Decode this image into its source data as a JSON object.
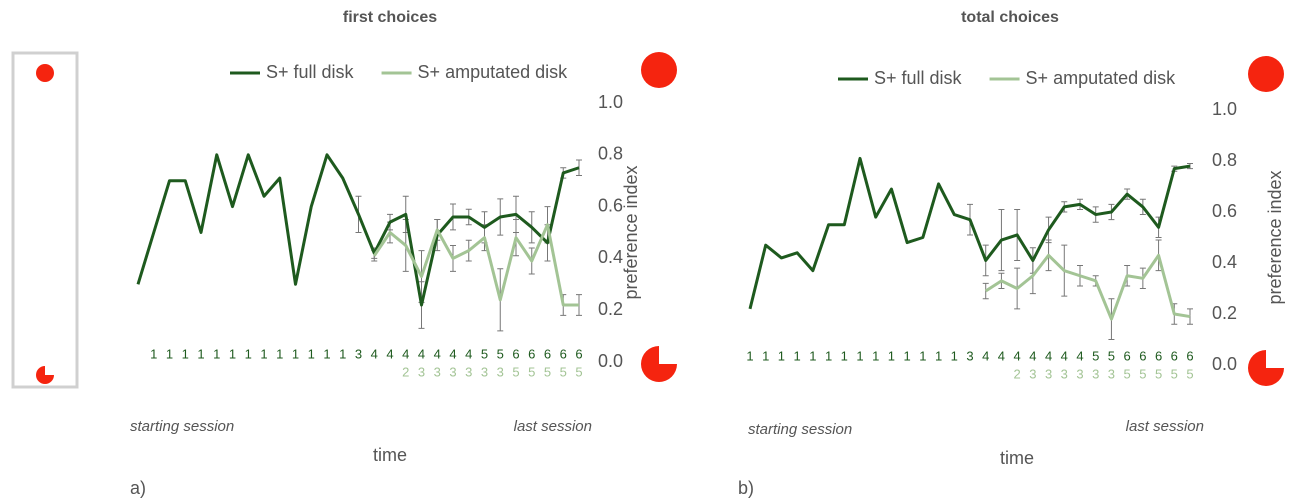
{
  "chart_data": [
    {
      "type": "line",
      "title": "first choices",
      "y_label": "preference index",
      "x_label": "time",
      "annotations": [
        "starting session",
        "last session",
        "a)"
      ],
      "categories": [
        null,
        "1",
        "1",
        "1",
        "1",
        "1",
        "1",
        "1",
        "1",
        "1",
        "1",
        "1",
        "1",
        "1",
        "3",
        "4",
        "4",
        "4",
        "4",
        "4",
        "4",
        "4",
        "5",
        "5",
        "6",
        "6",
        "6",
        "6",
        "6"
      ],
      "categories2": [
        null,
        null,
        null,
        null,
        null,
        null,
        null,
        null,
        null,
        null,
        null,
        null,
        null,
        null,
        null,
        null,
        null,
        "2",
        "3",
        "3",
        "3",
        "3",
        "3",
        "3",
        "5",
        "5",
        "5",
        "5",
        "5"
      ],
      "ylim": [
        0,
        1
      ],
      "yticks": [
        {
          "value": 0,
          "label": "0.0"
        },
        {
          "value": 0.2,
          "label": "0.2"
        },
        {
          "value": 0.4,
          "label": "0.4"
        },
        {
          "value": 0.6,
          "label": "0.6"
        },
        {
          "value": 0.8,
          "label": "0.8"
        },
        {
          "value": 1,
          "label": "1.0"
        }
      ],
      "grid": false,
      "legend": "top",
      "series": [
        {
          "name": "S+ full disk",
          "color": "#1e5a1e",
          "values": [
            0.3,
            0.5,
            0.7,
            0.7,
            0.5,
            0.8,
            0.6,
            0.8,
            0.64,
            0.71,
            0.3,
            0.6,
            0.8,
            0.71,
            0.57,
            0.42,
            0.54,
            0.57,
            0.22,
            0.49,
            0.56,
            0.56,
            0.52,
            0.56,
            0.57,
            0.52,
            0.46,
            0.73,
            0.75
          ],
          "errors": [
            null,
            null,
            null,
            null,
            null,
            null,
            null,
            null,
            null,
            null,
            null,
            null,
            null,
            null,
            0.07,
            0.02,
            0.03,
            0.07,
            0.09,
            0.06,
            0.05,
            0.03,
            0.06,
            0.07,
            0.07,
            0.06,
            0.07,
            0.02,
            0.03
          ]
        },
        {
          "name": "S+ amputated disk",
          "color": "#a3c495",
          "values": [
            null,
            null,
            null,
            null,
            null,
            null,
            null,
            null,
            null,
            null,
            null,
            null,
            null,
            null,
            null,
            0.41,
            0.5,
            0.45,
            0.33,
            0.51,
            0.4,
            0.43,
            0.48,
            0.24,
            0.48,
            0.39,
            0.53,
            0.22,
            0.22
          ],
          "errors": [
            null,
            null,
            null,
            null,
            null,
            null,
            null,
            null,
            null,
            null,
            null,
            null,
            null,
            null,
            null,
            0.02,
            0.04,
            0.1,
            0.1,
            0.04,
            0.05,
            0.04,
            0.05,
            0.12,
            0.07,
            0.05,
            0.07,
            0.04,
            0.04
          ]
        }
      ]
    },
    {
      "type": "line",
      "title": "total choices",
      "y_label": "preference index",
      "x_label": "time",
      "annotations": [
        "starting session",
        "last session",
        "b)"
      ],
      "categories": [
        "1",
        "1",
        "1",
        "1",
        "1",
        "1",
        "1",
        "1",
        "1",
        "1",
        "1",
        "1",
        "1",
        "1",
        "3",
        "4",
        "4",
        "4",
        "4",
        "4",
        "4",
        "4",
        "5",
        "5",
        "6",
        "6",
        "6",
        "6",
        "6"
      ],
      "categories2": [
        null,
        null,
        null,
        null,
        null,
        null,
        null,
        null,
        null,
        null,
        null,
        null,
        null,
        null,
        null,
        null,
        null,
        "2",
        "3",
        "3",
        "3",
        "3",
        "3",
        "3",
        "5",
        "5",
        "5",
        "5",
        "5"
      ],
      "ylim": [
        0,
        1
      ],
      "yticks": [
        {
          "value": 0,
          "label": "0.0"
        },
        {
          "value": 0.2,
          "label": "0.2"
        },
        {
          "value": 0.4,
          "label": "0.4"
        },
        {
          "value": 0.6,
          "label": "0.6"
        },
        {
          "value": 0.8,
          "label": "0.8"
        },
        {
          "value": 1,
          "label": "1.0"
        }
      ],
      "grid": false,
      "legend": "top",
      "series": [
        {
          "name": "S+ full disk",
          "color": "#1e5a1e",
          "values": [
            0.22,
            0.47,
            0.42,
            0.44,
            0.37,
            0.55,
            0.55,
            0.81,
            0.58,
            0.69,
            0.48,
            0.5,
            0.71,
            0.59,
            0.57,
            0.41,
            0.49,
            0.51,
            0.41,
            0.53,
            0.62,
            0.63,
            0.59,
            0.6,
            0.67,
            0.62,
            0.54,
            0.77,
            0.78
          ],
          "errors": [
            null,
            null,
            null,
            null,
            null,
            null,
            null,
            null,
            null,
            null,
            null,
            null,
            null,
            null,
            0.06,
            0.06,
            0.12,
            0.1,
            0.05,
            0.05,
            0.02,
            0.02,
            0.03,
            0.03,
            0.02,
            0.03,
            0.04,
            0.01,
            0.01
          ]
        },
        {
          "name": "S+ amputated disk",
          "color": "#a3c495",
          "values": [
            null,
            null,
            null,
            null,
            null,
            null,
            null,
            null,
            null,
            null,
            null,
            null,
            null,
            null,
            null,
            0.29,
            0.33,
            0.3,
            0.35,
            0.43,
            0.37,
            0.35,
            0.33,
            0.18,
            0.35,
            0.34,
            0.43,
            0.2,
            0.19
          ],
          "errors": [
            null,
            null,
            null,
            null,
            null,
            null,
            null,
            null,
            null,
            null,
            null,
            null,
            null,
            null,
            null,
            0.03,
            0.03,
            0.08,
            0.07,
            0.06,
            0.1,
            0.04,
            0.02,
            0.08,
            0.04,
            0.04,
            0.06,
            0.04,
            0.03
          ]
        }
      ]
    }
  ]
}
